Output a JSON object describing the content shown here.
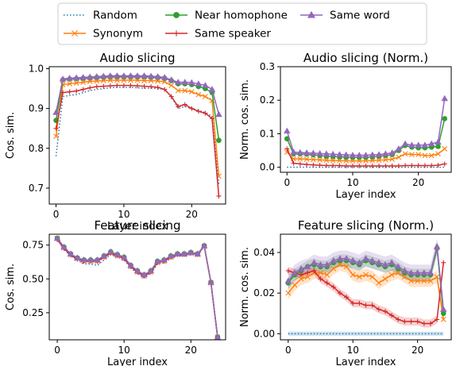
{
  "legend": {
    "items": [
      {
        "name": "Random",
        "color": "#1f77b4",
        "marker": "none",
        "dash": "dotted"
      },
      {
        "name": "Synonym",
        "color": "#ff7f0e",
        "marker": "x",
        "dash": "solid"
      },
      {
        "name": "Near homophone",
        "color": "#2ca02c",
        "marker": "circle",
        "dash": "solid"
      },
      {
        "name": "Same speaker",
        "color": "#d62728",
        "marker": "plus",
        "dash": "solid"
      },
      {
        "name": "Same word",
        "color": "#9467bd",
        "marker": "triangle",
        "dash": "solid"
      }
    ]
  },
  "chart_data": [
    {
      "type": "line",
      "title": "Audio slicing",
      "xlabel": "Layer index",
      "ylabel": "Cos. sim.",
      "xlim": [
        -1,
        25
      ],
      "ylim": [
        0.66,
        1.005
      ],
      "xticks": [
        0,
        10,
        20
      ],
      "yticks": [
        0.7,
        0.8,
        0.9,
        1.0
      ],
      "ytick_labels": [
        "0.7",
        "0.8",
        "0.9",
        "1.0"
      ],
      "x": [
        0,
        1,
        2,
        3,
        4,
        5,
        6,
        7,
        8,
        9,
        10,
        11,
        12,
        13,
        14,
        15,
        16,
        17,
        18,
        19,
        20,
        21,
        22,
        23,
        24
      ],
      "series": [
        {
          "name": "Random",
          "values": [
            0.78,
            0.93,
            0.933,
            0.935,
            0.94,
            0.945,
            0.948,
            0.95,
            0.952,
            0.953,
            0.953,
            0.953,
            0.952,
            0.951,
            0.951,
            0.95,
            0.948,
            0.93,
            0.9,
            0.905,
            0.9,
            0.895,
            0.89,
            0.88,
            0.71
          ]
        },
        {
          "name": "Synonym",
          "values": [
            0.83,
            0.96,
            0.962,
            0.964,
            0.966,
            0.968,
            0.969,
            0.97,
            0.971,
            0.971,
            0.971,
            0.971,
            0.971,
            0.97,
            0.97,
            0.969,
            0.967,
            0.958,
            0.945,
            0.945,
            0.942,
            0.935,
            0.93,
            0.92,
            0.73
          ]
        },
        {
          "name": "Near homophone",
          "values": [
            0.87,
            0.972,
            0.974,
            0.975,
            0.976,
            0.977,
            0.978,
            0.979,
            0.98,
            0.98,
            0.98,
            0.98,
            0.98,
            0.98,
            0.979,
            0.978,
            0.976,
            0.97,
            0.962,
            0.962,
            0.96,
            0.955,
            0.95,
            0.94,
            0.82
          ]
        },
        {
          "name": "Same speaker",
          "values": [
            0.85,
            0.94,
            0.942,
            0.944,
            0.948,
            0.952,
            0.955,
            0.956,
            0.957,
            0.958,
            0.958,
            0.958,
            0.957,
            0.956,
            0.955,
            0.953,
            0.948,
            0.93,
            0.905,
            0.91,
            0.9,
            0.893,
            0.888,
            0.875,
            0.68
          ]
        },
        {
          "name": "Same word",
          "values": [
            0.89,
            0.974,
            0.976,
            0.977,
            0.978,
            0.979,
            0.98,
            0.981,
            0.982,
            0.982,
            0.982,
            0.982,
            0.982,
            0.982,
            0.981,
            0.98,
            0.978,
            0.972,
            0.966,
            0.966,
            0.965,
            0.962,
            0.958,
            0.948,
            0.885
          ]
        }
      ]
    },
    {
      "type": "line",
      "title": "Audio slicing (Norm.)",
      "xlabel": "Layer index",
      "ylabel": "Norm. cos. sim.",
      "xlim": [
        -1,
        25
      ],
      "ylim": [
        -0.015,
        0.3
      ],
      "xticks": [
        0,
        10,
        20
      ],
      "yticks": [
        0.0,
        0.1,
        0.2,
        0.3
      ],
      "ytick_labels": [
        "0.0",
        "0.1",
        "0.2",
        "0.3"
      ],
      "x": [
        0,
        1,
        2,
        3,
        4,
        5,
        6,
        7,
        8,
        9,
        10,
        11,
        12,
        13,
        14,
        15,
        16,
        17,
        18,
        19,
        20,
        21,
        22,
        23,
        24
      ],
      "series": [
        {
          "name": "Random",
          "values": [
            0,
            0,
            0,
            0,
            0,
            0,
            0,
            0,
            0,
            0,
            0,
            0,
            0,
            0,
            0,
            0,
            0,
            0,
            0,
            0,
            0,
            0,
            0,
            0,
            0
          ]
        },
        {
          "name": "Synonym",
          "values": [
            0.045,
            0.025,
            0.025,
            0.024,
            0.023,
            0.022,
            0.021,
            0.02,
            0.02,
            0.019,
            0.019,
            0.019,
            0.019,
            0.02,
            0.021,
            0.022,
            0.024,
            0.03,
            0.04,
            0.038,
            0.038,
            0.035,
            0.035,
            0.04,
            0.055
          ]
        },
        {
          "name": "Near homophone",
          "values": [
            0.085,
            0.04,
            0.04,
            0.039,
            0.037,
            0.035,
            0.033,
            0.032,
            0.031,
            0.03,
            0.03,
            0.03,
            0.03,
            0.031,
            0.033,
            0.035,
            0.038,
            0.05,
            0.065,
            0.06,
            0.058,
            0.058,
            0.06,
            0.062,
            0.145
          ]
        },
        {
          "name": "Same speaker",
          "values": [
            0.055,
            0.012,
            0.01,
            0.008,
            0.007,
            0.006,
            0.005,
            0.005,
            0.005,
            0.004,
            0.004,
            0.004,
            0.004,
            0.004,
            0.004,
            0.004,
            0.004,
            0.004,
            0.005,
            0.005,
            0.005,
            0.005,
            0.005,
            0.006,
            0.01
          ]
        },
        {
          "name": "Same word",
          "values": [
            0.108,
            0.045,
            0.044,
            0.043,
            0.042,
            0.041,
            0.04,
            0.039,
            0.038,
            0.037,
            0.036,
            0.036,
            0.036,
            0.037,
            0.038,
            0.04,
            0.043,
            0.055,
            0.07,
            0.066,
            0.066,
            0.066,
            0.07,
            0.075,
            0.205
          ]
        }
      ]
    },
    {
      "type": "line",
      "title": "Feature slicing",
      "xlabel": "Layer index",
      "ylabel": "Cos. sim.",
      "xlim": [
        -1.2,
        25.2
      ],
      "ylim": [
        0.05,
        0.83
      ],
      "xticks": [
        0,
        10,
        20
      ],
      "yticks": [
        0.25,
        0.5,
        0.75
      ],
      "ytick_labels": [
        "0.25",
        "0.50",
        "0.75"
      ],
      "x": [
        0,
        1,
        2,
        3,
        4,
        5,
        6,
        7,
        8,
        9,
        10,
        11,
        12,
        13,
        14,
        15,
        16,
        17,
        18,
        19,
        20,
        21,
        22,
        23,
        24
      ],
      "series": [
        {
          "name": "Random",
          "values": [
            0.79,
            0.72,
            0.67,
            0.64,
            0.61,
            0.61,
            0.6,
            0.64,
            0.68,
            0.66,
            0.64,
            0.58,
            0.54,
            0.51,
            0.54,
            0.61,
            0.62,
            0.65,
            0.67,
            0.67,
            0.68,
            0.67,
            0.74,
            0.47,
            0.06
          ]
        },
        {
          "name": "Synonym",
          "values": [
            0.8,
            0.73,
            0.68,
            0.65,
            0.63,
            0.63,
            0.63,
            0.66,
            0.69,
            0.67,
            0.65,
            0.59,
            0.55,
            0.52,
            0.55,
            0.62,
            0.63,
            0.66,
            0.68,
            0.68,
            0.69,
            0.68,
            0.74,
            0.47,
            0.07
          ]
        },
        {
          "name": "Near homophone",
          "values": [
            0.8,
            0.735,
            0.685,
            0.655,
            0.64,
            0.64,
            0.64,
            0.67,
            0.7,
            0.68,
            0.66,
            0.6,
            0.56,
            0.53,
            0.56,
            0.63,
            0.64,
            0.67,
            0.685,
            0.685,
            0.695,
            0.685,
            0.745,
            0.475,
            0.07
          ]
        },
        {
          "name": "Same speaker",
          "values": [
            0.79,
            0.725,
            0.675,
            0.645,
            0.63,
            0.63,
            0.63,
            0.66,
            0.69,
            0.67,
            0.65,
            0.59,
            0.55,
            0.52,
            0.55,
            0.62,
            0.63,
            0.66,
            0.68,
            0.68,
            0.69,
            0.68,
            0.745,
            0.475,
            0.07
          ]
        },
        {
          "name": "Same word",
          "values": [
            0.8,
            0.735,
            0.685,
            0.655,
            0.64,
            0.64,
            0.64,
            0.67,
            0.7,
            0.68,
            0.66,
            0.6,
            0.56,
            0.53,
            0.56,
            0.63,
            0.64,
            0.67,
            0.685,
            0.685,
            0.695,
            0.685,
            0.745,
            0.475,
            0.07
          ]
        }
      ]
    },
    {
      "type": "line",
      "title": "Feature slicing (Norm.)",
      "xlabel": "Layer index",
      "ylabel": "Norm. cos. sim.",
      "xlim": [
        -1.2,
        25.2
      ],
      "ylim": [
        -0.003,
        0.049
      ],
      "xticks": [
        0,
        10,
        20
      ],
      "yticks": [
        0.0,
        0.02,
        0.04
      ],
      "ytick_labels": [
        "0.00",
        "0.02",
        "0.04"
      ],
      "x": [
        0,
        1,
        2,
        3,
        4,
        5,
        6,
        7,
        8,
        9,
        10,
        11,
        12,
        13,
        14,
        15,
        16,
        17,
        18,
        19,
        20,
        21,
        22,
        23,
        24
      ],
      "shaded_band": true,
      "series": [
        {
          "name": "Random",
          "values": [
            0,
            0,
            0,
            0,
            0,
            0,
            0,
            0,
            0,
            0,
            0,
            0,
            0,
            0,
            0,
            0,
            0,
            0,
            0,
            0,
            0,
            0,
            0,
            0,
            0
          ],
          "band": 0.001
        },
        {
          "name": "Synonym",
          "values": [
            0.02,
            0.024,
            0.027,
            0.028,
            0.03,
            0.03,
            0.029,
            0.032,
            0.034,
            0.033,
            0.029,
            0.028,
            0.029,
            0.028,
            0.025,
            0.027,
            0.029,
            0.03,
            0.028,
            0.026,
            0.026,
            0.026,
            0.026,
            0.028,
            0.007
          ],
          "band": 0.003
        },
        {
          "name": "Near homophone",
          "values": [
            0.025,
            0.029,
            0.031,
            0.033,
            0.034,
            0.033,
            0.033,
            0.035,
            0.036,
            0.036,
            0.035,
            0.034,
            0.036,
            0.035,
            0.034,
            0.033,
            0.034,
            0.032,
            0.03,
            0.029,
            0.029,
            0.029,
            0.029,
            0.042,
            0.01
          ],
          "band": 0.003
        },
        {
          "name": "Same speaker",
          "values": [
            0.031,
            0.03,
            0.029,
            0.03,
            0.031,
            0.027,
            0.025,
            0.023,
            0.02,
            0.018,
            0.015,
            0.015,
            0.014,
            0.014,
            0.012,
            0.011,
            0.009,
            0.007,
            0.006,
            0.006,
            0.006,
            0.005,
            0.005,
            0.007,
            0.035
          ],
          "band": 0.002
        },
        {
          "name": "Same word",
          "values": [
            0.026,
            0.03,
            0.032,
            0.033,
            0.035,
            0.034,
            0.034,
            0.036,
            0.037,
            0.037,
            0.036,
            0.035,
            0.037,
            0.036,
            0.035,
            0.034,
            0.035,
            0.033,
            0.031,
            0.03,
            0.03,
            0.03,
            0.03,
            0.043,
            0.012
          ],
          "band": 0.004
        }
      ]
    }
  ]
}
